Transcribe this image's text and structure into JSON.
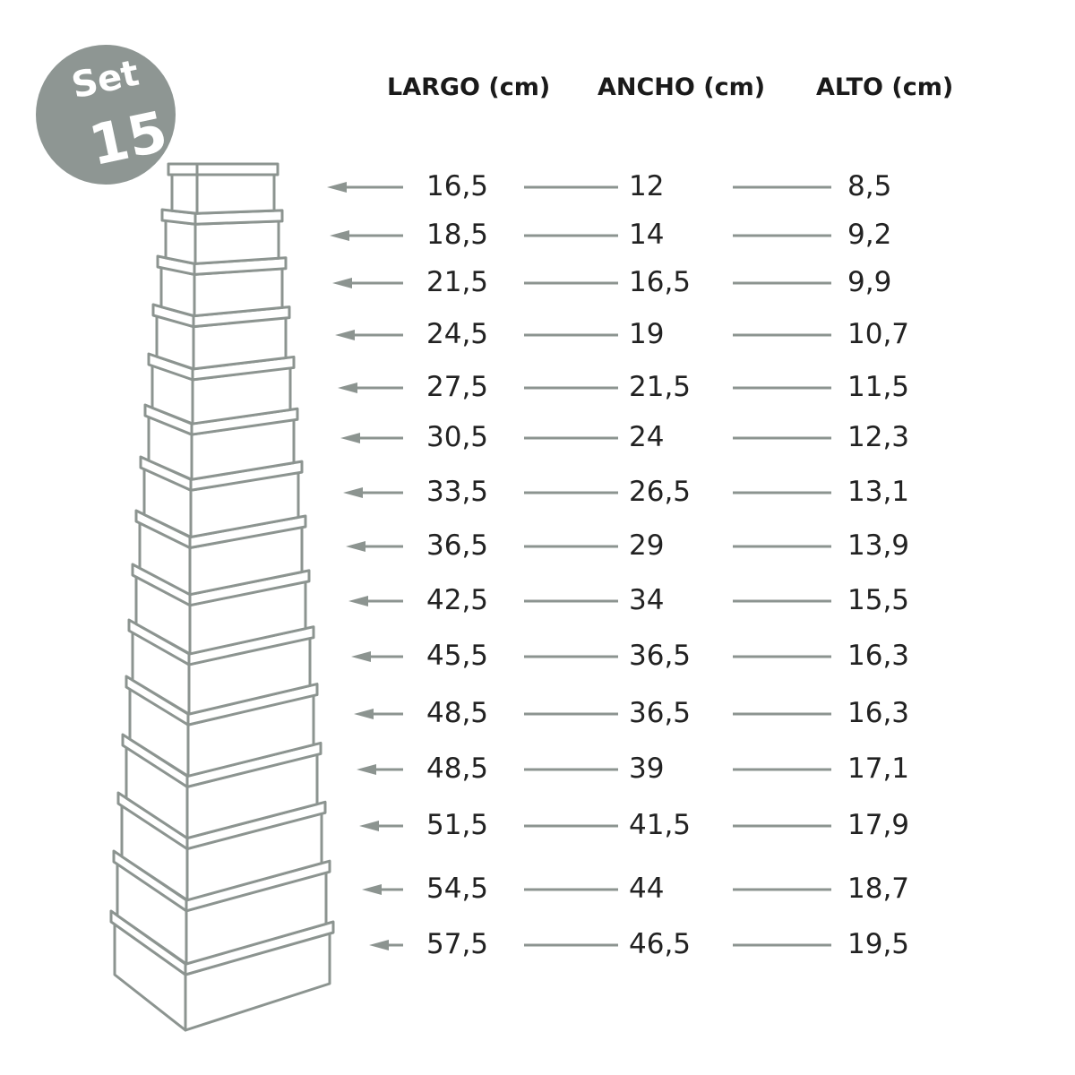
{
  "badge": {
    "line1": "Set",
    "line2": "15",
    "color": "#8e9693"
  },
  "colors": {
    "line": "#8c9490",
    "text": "#222222"
  },
  "headers": {
    "largo": "LARGO (cm)",
    "ancho": "ANCHO (cm)",
    "alto": "ALTO (cm)"
  },
  "rows": [
    {
      "largo": "16,5",
      "ancho": "12",
      "alto": "8,5"
    },
    {
      "largo": "18,5",
      "ancho": "14",
      "alto": "9,2"
    },
    {
      "largo": "21,5",
      "ancho": "16,5",
      "alto": "9,9"
    },
    {
      "largo": "24,5",
      "ancho": "19",
      "alto": "10,7"
    },
    {
      "largo": "27,5",
      "ancho": "21,5",
      "alto": "11,5"
    },
    {
      "largo": "30,5",
      "ancho": "24",
      "alto": "12,3"
    },
    {
      "largo": "33,5",
      "ancho": "26,5",
      "alto": "13,1"
    },
    {
      "largo": "36,5",
      "ancho": "29",
      "alto": "13,9"
    },
    {
      "largo": "42,5",
      "ancho": "34",
      "alto": "15,5"
    },
    {
      "largo": "45,5",
      "ancho": "36,5",
      "alto": "16,3"
    },
    {
      "largo": "48,5",
      "ancho": "36,5",
      "alto": "16,3"
    },
    {
      "largo": "48,5",
      "ancho": "39",
      "alto": "17,1"
    },
    {
      "largo": "51,5",
      "ancho": "41,5",
      "alto": "17,9"
    },
    {
      "largo": "54,5",
      "ancho": "44",
      "alto": "18,7"
    },
    {
      "largo": "57,5",
      "ancho": "46,5",
      "alto": "19,5"
    }
  ]
}
